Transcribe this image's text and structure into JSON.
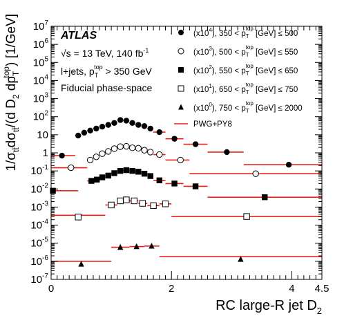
{
  "chart_data": {
    "type": "scatter",
    "xlabel": "RC large-R jet D",
    "xlabel_sub": "2",
    "ylabel": "1/σ_tt̄ dσ_tt̄/(d D_2 dp_T^top) [1/GeV]",
    "ylabel_parts": {
      "a": "1/σ",
      "a_sub": "tt̄",
      "b": "dσ",
      "b_sub": "tt̄",
      "c": "/(d D",
      "c_sub": "2",
      "d": " dp",
      "d_sub": "T",
      "d_sup": "top",
      "e": ") [1/GeV]"
    },
    "xlim": [
      0,
      4.5
    ],
    "ylim": [
      1e-07,
      10000000.0
    ],
    "yscale": "log",
    "x_ticks": [
      {
        "v": 0,
        "label": "0"
      },
      {
        "v": 2,
        "label": "2"
      },
      {
        "v": 4,
        "label": "4"
      },
      {
        "v": 4.5,
        "label": "4.5"
      }
    ],
    "y_ticks": [
      {
        "exp": 7,
        "base": "10",
        "sup": "7"
      },
      {
        "exp": 6,
        "base": "10",
        "sup": "6"
      },
      {
        "exp": 5,
        "base": "10",
        "sup": "5"
      },
      {
        "exp": 4,
        "base": "10",
        "sup": "4"
      },
      {
        "exp": 3,
        "base": "10",
        "sup": "3"
      },
      {
        "exp": 2,
        "base": "10",
        "sup": "2"
      },
      {
        "exp": 1,
        "base": "10",
        "sup": ""
      },
      {
        "exp": 0,
        "base": "1",
        "sup": ""
      },
      {
        "exp": -1,
        "base": "10",
        "sup": "-1"
      },
      {
        "exp": -2,
        "base": "10",
        "sup": "-2"
      },
      {
        "exp": -3,
        "base": "10",
        "sup": "-3"
      },
      {
        "exp": -4,
        "base": "10",
        "sup": "-4"
      },
      {
        "exp": -5,
        "base": "10",
        "sup": "-5"
      },
      {
        "exp": -6,
        "base": "10",
        "sup": "-6"
      },
      {
        "exp": -7,
        "base": "10",
        "sup": "-7"
      }
    ],
    "annotations": {
      "atlas": "ATLAS",
      "energy": "√s = 13 TeV, 140  fb",
      "energy_sup": "-1",
      "channel": "l+jets, p",
      "channel_sub": "T",
      "channel_sup": "top",
      "channel_rest": " > 350 GeV",
      "phase_space": "Fiducial phase-space"
    },
    "legend": {
      "placement": "top-right",
      "mc_label": "PWG+PY8",
      "entries": [
        {
          "scale": "(x10",
          "scale_sup": "4",
          "range": "), 350 < p",
          "sub": "T",
          "sup": "top",
          "tail": " [GeV] ≤ 500",
          "marker": "circle-filled"
        },
        {
          "scale": "(x10",
          "scale_sup": "3",
          "range": "), 500 < p",
          "sub": "T",
          "sup": "top",
          "tail": " [GeV] ≤ 550",
          "marker": "circle-open"
        },
        {
          "scale": "(x10",
          "scale_sup": "2",
          "range": "), 550 < p",
          "sub": "T",
          "sup": "top",
          "tail": " [GeV] ≤ 650",
          "marker": "square-filled"
        },
        {
          "scale": "(x10",
          "scale_sup": "1",
          "range": "), 650 < p",
          "sub": "T",
          "sup": "top",
          "tail": " [GeV] ≤ 750",
          "marker": "square-open"
        },
        {
          "scale": "(x10",
          "scale_sup": "0",
          "range": "), 750 < p",
          "sub": "T",
          "sup": "top",
          "tail": " [GeV] ≤ 2000",
          "marker": "triangle-filled"
        }
      ]
    },
    "series": [
      {
        "name": "350 < pT top ≤ 500 (x10^4)",
        "marker": "circle-filled",
        "points": [
          {
            "x0": 0.0,
            "x1": 0.4,
            "x": 0.18,
            "y": 0.7,
            "mc": 0.7
          },
          {
            "x0": 0.4,
            "x1": 0.5,
            "x": 0.45,
            "y": 9,
            "mc": 9
          },
          {
            "x0": 0.5,
            "x1": 0.6,
            "x": 0.55,
            "y": 13,
            "mc": 13
          },
          {
            "x0": 0.6,
            "x1": 0.7,
            "x": 0.65,
            "y": 17,
            "mc": 17
          },
          {
            "x0": 0.7,
            "x1": 0.8,
            "x": 0.75,
            "y": 22,
            "mc": 22
          },
          {
            "x0": 0.8,
            "x1": 0.9,
            "x": 0.85,
            "y": 28,
            "mc": 28
          },
          {
            "x0": 0.9,
            "x1": 1.0,
            "x": 0.95,
            "y": 35,
            "mc": 35
          },
          {
            "x0": 1.0,
            "x1": 1.1,
            "x": 1.05,
            "y": 45,
            "mc": 45
          },
          {
            "x0": 1.1,
            "x1": 1.2,
            "x": 1.15,
            "y": 65,
            "mc": 65
          },
          {
            "x0": 1.2,
            "x1": 1.3,
            "x": 1.25,
            "y": 60,
            "mc": 60
          },
          {
            "x0": 1.3,
            "x1": 1.4,
            "x": 1.35,
            "y": 45,
            "mc": 45
          },
          {
            "x0": 1.4,
            "x1": 1.5,
            "x": 1.45,
            "y": 35,
            "mc": 35
          },
          {
            "x0": 1.5,
            "x1": 1.6,
            "x": 1.55,
            "y": 30,
            "mc": 30
          },
          {
            "x0": 1.6,
            "x1": 1.7,
            "x": 1.65,
            "y": 22,
            "mc": 22
          },
          {
            "x0": 1.7,
            "x1": 1.9,
            "x": 1.8,
            "y": 14,
            "mc": 14
          },
          {
            "x0": 1.9,
            "x1": 2.2,
            "x": 2.05,
            "y": 6,
            "mc": 6
          },
          {
            "x0": 2.2,
            "x1": 2.6,
            "x": 2.4,
            "y": 3,
            "mc": 3
          },
          {
            "x0": 2.6,
            "x1": 3.2,
            "x": 2.92,
            "y": 1.1,
            "mc": 1.1
          },
          {
            "x0": 3.2,
            "x1": 4.5,
            "x": 3.95,
            "y": 0.22,
            "mc": 0.22
          }
        ]
      },
      {
        "name": "500 < pT top ≤ 550 (x10^3)",
        "marker": "circle-open",
        "points": [
          {
            "x0": 0.0,
            "x1": 0.6,
            "x": 0.33,
            "y": 0.15,
            "mc": 0.15
          },
          {
            "x0": 0.6,
            "x1": 0.7,
            "x": 0.65,
            "y": 0.4,
            "mc": 0.4
          },
          {
            "x0": 0.7,
            "x1": 0.8,
            "x": 0.75,
            "y": 0.6,
            "mc": 0.6
          },
          {
            "x0": 0.8,
            "x1": 0.9,
            "x": 0.85,
            "y": 0.9,
            "mc": 0.9
          },
          {
            "x0": 0.9,
            "x1": 1.0,
            "x": 0.95,
            "y": 1.2,
            "mc": 1.2
          },
          {
            "x0": 1.0,
            "x1": 1.1,
            "x": 1.05,
            "y": 1.7,
            "mc": 1.7
          },
          {
            "x0": 1.1,
            "x1": 1.2,
            "x": 1.15,
            "y": 2.2,
            "mc": 2.2
          },
          {
            "x0": 1.2,
            "x1": 1.3,
            "x": 1.25,
            "y": 2.3,
            "mc": 2.3
          },
          {
            "x0": 1.3,
            "x1": 1.4,
            "x": 1.35,
            "y": 1.9,
            "mc": 1.9
          },
          {
            "x0": 1.4,
            "x1": 1.5,
            "x": 1.45,
            "y": 1.8,
            "mc": 1.8
          },
          {
            "x0": 1.5,
            "x1": 1.6,
            "x": 1.55,
            "y": 1.4,
            "mc": 1.4
          },
          {
            "x0": 1.6,
            "x1": 1.7,
            "x": 1.65,
            "y": 1.1,
            "mc": 1.1
          },
          {
            "x0": 1.7,
            "x1": 1.9,
            "x": 1.8,
            "y": 0.8,
            "mc": 0.8
          },
          {
            "x0": 1.9,
            "x1": 2.3,
            "x": 2.15,
            "y": 0.4,
            "mc": 0.4
          },
          {
            "x0": 2.3,
            "x1": 4.5,
            "x": 3.4,
            "y": 0.07,
            "mc": 0.07
          }
        ]
      },
      {
        "name": "550 < pT top ≤ 650 (x10^2)",
        "marker": "square-filled",
        "points": [
          {
            "x0": 0.0,
            "x1": 0.45,
            "x": 0.03,
            "y": 0.008,
            "mc": 0.008
          },
          {
            "x0": 0.6,
            "x1": 0.7,
            "x": 0.67,
            "y": 0.028,
            "mc": 0.028
          },
          {
            "x0": 0.7,
            "x1": 0.8,
            "x": 0.76,
            "y": 0.033,
            "mc": 0.033
          },
          {
            "x0": 0.8,
            "x1": 0.9,
            "x": 0.85,
            "y": 0.044,
            "mc": 0.044
          },
          {
            "x0": 0.9,
            "x1": 1.0,
            "x": 0.95,
            "y": 0.055,
            "mc": 0.055
          },
          {
            "x0": 1.0,
            "x1": 1.1,
            "x": 1.05,
            "y": 0.075,
            "mc": 0.075
          },
          {
            "x0": 1.1,
            "x1": 1.2,
            "x": 1.15,
            "y": 0.1,
            "mc": 0.1
          },
          {
            "x0": 1.2,
            "x1": 1.3,
            "x": 1.25,
            "y": 0.11,
            "mc": 0.11
          },
          {
            "x0": 1.3,
            "x1": 1.4,
            "x": 1.35,
            "y": 0.1,
            "mc": 0.1
          },
          {
            "x0": 1.4,
            "x1": 1.5,
            "x": 1.45,
            "y": 0.09,
            "mc": 0.09
          },
          {
            "x0": 1.5,
            "x1": 1.6,
            "x": 1.55,
            "y": 0.07,
            "mc": 0.07
          },
          {
            "x0": 1.6,
            "x1": 1.7,
            "x": 1.65,
            "y": 0.052,
            "mc": 0.052
          },
          {
            "x0": 1.7,
            "x1": 1.9,
            "x": 1.8,
            "y": 0.03,
            "mc": 0.03
          },
          {
            "x0": 1.9,
            "x1": 2.2,
            "x": 2.05,
            "y": 0.02,
            "mc": 0.02
          },
          {
            "x0": 2.2,
            "x1": 2.6,
            "x": 2.4,
            "y": 0.014,
            "mc": 0.014
          },
          {
            "x0": 2.6,
            "x1": 4.5,
            "x": 3.55,
            "y": 0.0035,
            "mc": 0.0035
          }
        ]
      },
      {
        "name": "650 < pT top ≤ 750 (x10^1)",
        "marker": "square-open",
        "points": [
          {
            "x0": 0.0,
            "x1": 0.9,
            "x": 0.45,
            "y": 0.00028,
            "mc": 0.00035
          },
          {
            "x0": 0.9,
            "x1": 1.1,
            "x": 1.0,
            "y": 0.0013,
            "mc": 0.0013
          },
          {
            "x0": 1.1,
            "x1": 1.2,
            "x": 1.15,
            "y": 0.0022,
            "mc": 0.0022
          },
          {
            "x0": 1.2,
            "x1": 1.3,
            "x": 1.25,
            "y": 0.0025,
            "mc": 0.0025
          },
          {
            "x0": 1.3,
            "x1": 1.45,
            "x": 1.38,
            "y": 0.0022,
            "mc": 0.0022
          },
          {
            "x0": 1.45,
            "x1": 1.6,
            "x": 1.52,
            "y": 0.0016,
            "mc": 0.0016
          },
          {
            "x0": 1.6,
            "x1": 1.8,
            "x": 1.7,
            "y": 0.0012,
            "mc": 0.0012
          },
          {
            "x0": 1.8,
            "x1": 2.0,
            "x": 1.9,
            "y": 0.0015,
            "mc": 0.0015
          },
          {
            "x0": 2.0,
            "x1": 4.5,
            "x": 3.25,
            "y": 0.0003,
            "mc": 0.0003
          }
        ]
      },
      {
        "name": "750 < pT top ≤ 2000 (x10^0)",
        "marker": "triangle-filled",
        "points": [
          {
            "x0": 0.0,
            "x1": 1.0,
            "x": 0.5,
            "y": 7e-07,
            "mc": 1e-06
          },
          {
            "x0": 1.0,
            "x1": 1.3,
            "x": 1.15,
            "y": 6e-06,
            "mc": 6e-06
          },
          {
            "x0": 1.3,
            "x1": 1.55,
            "x": 1.42,
            "y": 6.5e-06,
            "mc": 6.5e-06
          },
          {
            "x0": 1.55,
            "x1": 1.8,
            "x": 1.67,
            "y": 7e-06,
            "mc": 7e-06
          },
          {
            "x0": 1.8,
            "x1": 4.5,
            "x": 3.15,
            "y": 1.3e-06,
            "mc": 1.8e-06
          }
        ]
      }
    ]
  }
}
